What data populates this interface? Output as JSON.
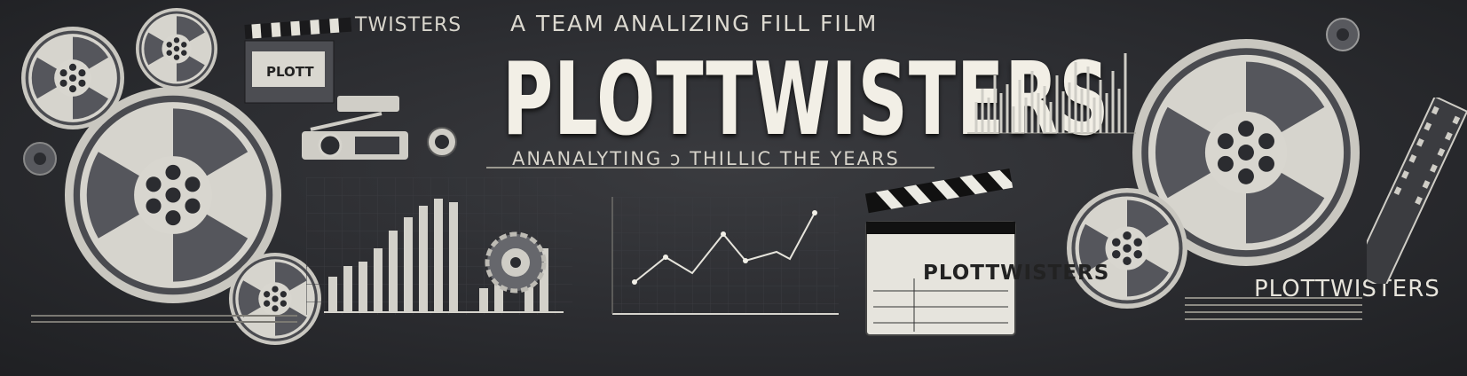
{
  "banner": {
    "top_tagline": "A TEAM ANALIZING   FILL FILM",
    "title": "PLOTTWISTERS",
    "subtitle": "ANANALYTING ɔ THILLIC THE YEARS",
    "clapper_top_text": "TWISTERS",
    "clapper_mini_text": "PLOTT",
    "clapper_board_text": "PLOTTWISTERS",
    "right_logo_text": "PLOTTWISTERS"
  },
  "colors": {
    "background": "#2b2c30",
    "reel": "#cfcdc6",
    "text": "#f2efe6"
  },
  "icons": [
    "film-reel-icon",
    "clapperboard-icon",
    "camera-icon",
    "gear-icon",
    "bar-chart-icon",
    "line-chart-icon"
  ]
}
